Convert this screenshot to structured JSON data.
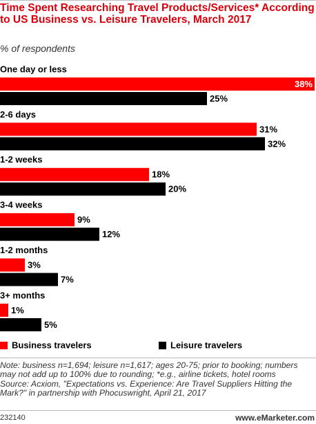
{
  "chart_data": {
    "type": "bar",
    "orientation": "horizontal",
    "title": "Time Spent Researching Travel Products/Services* According to US Business vs. Leisure Travelers, March 2017",
    "subtitle": "% of respondents",
    "categories": [
      "One day or less",
      "2-6 days",
      "1-2 weeks",
      "3-4 weeks",
      "1-2 months",
      "3+ months"
    ],
    "series": [
      {
        "name": "Business travelers",
        "color": "#ff0000",
        "values": [
          38,
          31,
          18,
          9,
          3,
          1
        ],
        "value_labels": [
          "38%",
          "31%",
          "18%",
          "9%",
          "3%",
          "1%"
        ]
      },
      {
        "name": "Leisure travelers",
        "color": "#000000",
        "values": [
          25,
          32,
          20,
          12,
          7,
          5
        ],
        "value_labels": [
          "25%",
          "32%",
          "20%",
          "12%",
          "7%",
          "5%"
        ]
      }
    ],
    "note": "Note: business n=1,694; leisure n=1,617; ages 20-75; prior to booking; numbers may not add up to 100% due to rounding; *e.g., airline tickets, hotel rooms",
    "source": "Source: Acxiom, \"Expectations vs. Experience: Are Travel Suppliers Hitting the Mark?\" in partnership with Phocuswright, April 21, 2017",
    "chart_id": "232140",
    "brand": "www.eMarketer.com"
  }
}
